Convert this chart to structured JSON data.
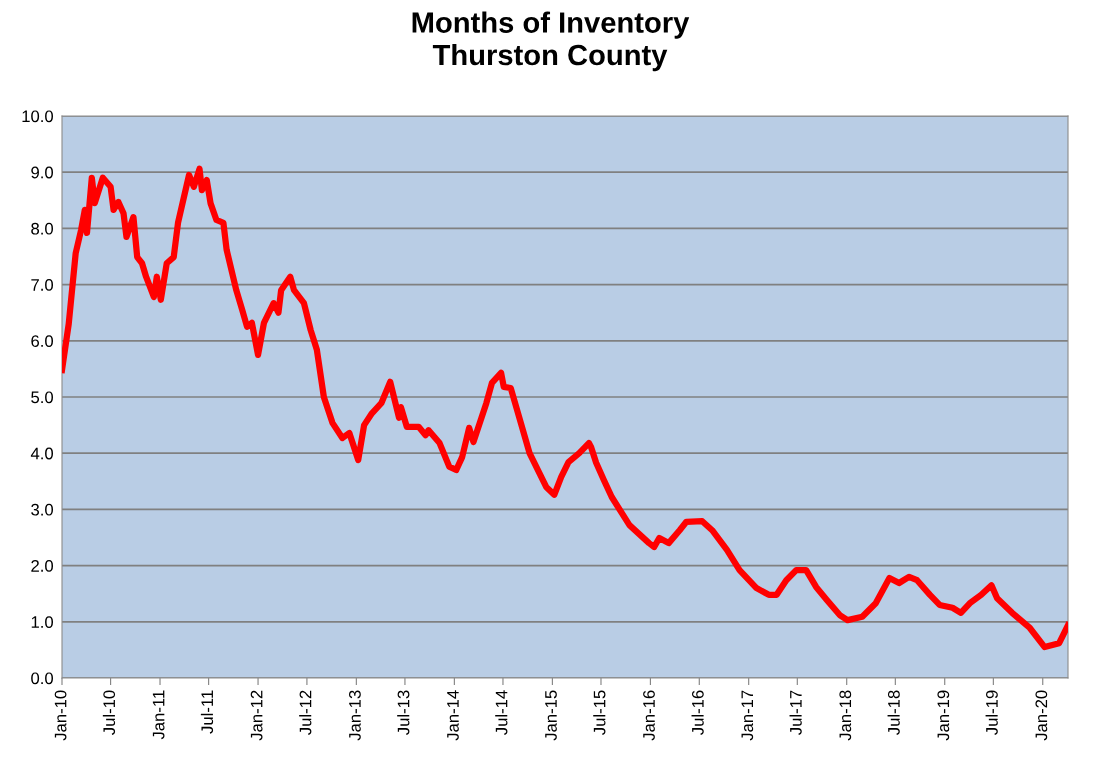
{
  "chart_data": {
    "type": "line",
    "title": "Months of Inventory\nThurston County",
    "x": [
      "2010-01-01",
      "2010-01-26",
      "2010-02-21",
      "2010-03-13",
      "2010-03-27",
      "2010-04-04",
      "2010-04-22",
      "2010-05-03",
      "2010-06-02",
      "2010-07-01",
      "2010-07-12",
      "2010-07-30",
      "2010-08-18",
      "2010-08-29",
      "2010-09-24",
      "2010-10-08",
      "2010-10-26",
      "2010-11-10",
      "2010-12-09",
      "2010-12-20",
      "2011-01-04",
      "2011-01-26",
      "2011-02-21",
      "2011-03-09",
      "2011-04-19",
      "2011-05-07",
      "2011-05-28",
      "2011-06-06",
      "2011-06-24",
      "2011-07-08",
      "2011-07-30",
      "2011-08-25",
      "2011-09-06",
      "2011-10-12",
      "2011-11-03",
      "2011-11-21",
      "2011-12-09",
      "2012-01-01",
      "2012-01-23",
      "2012-02-28",
      "2012-03-17",
      "2012-03-27",
      "2012-04-30",
      "2012-05-14",
      "2012-06-20",
      "2012-07-15",
      "2012-08-07",
      "2012-09-02",
      "2012-10-04",
      "2012-11-10",
      "2012-12-06",
      "2013-01-08",
      "2013-01-30",
      "2013-02-28",
      "2013-04-04",
      "2013-05-07",
      "2013-06-09",
      "2013-06-16",
      "2013-07-08",
      "2013-08-21",
      "2013-09-16",
      "2013-09-27",
      "2013-11-07",
      "2013-12-13",
      "2014-01-08",
      "2014-01-30",
      "2014-02-25",
      "2014-03-13",
      "2014-04-30",
      "2014-05-21",
      "2014-06-24",
      "2014-07-04",
      "2014-07-30",
      "2014-10-08",
      "2014-12-09",
      "2015-01-08",
      "2015-02-03",
      "2015-03-02",
      "2015-04-11",
      "2015-05-17",
      "2015-05-25",
      "2015-06-13",
      "2015-07-12",
      "2015-08-10",
      "2015-10-15",
      "2015-12-27",
      "2016-01-15",
      "2016-02-03",
      "2016-03-09",
      "2016-04-19",
      "2016-05-14",
      "2016-07-12",
      "2016-08-18",
      "2016-10-12",
      "2016-11-28",
      "2017-01-30",
      "2017-03-17",
      "2017-04-15",
      "2017-05-21",
      "2017-06-27",
      "2017-08-03",
      "2017-09-09",
      "2017-10-19",
      "2017-12-06",
      "2018-01-04",
      "2018-02-28",
      "2018-04-19",
      "2018-06-09",
      "2018-07-15",
      "2018-08-21",
      "2018-09-20",
      "2018-11-07",
      "2018-12-13",
      "2019-01-30",
      "2019-03-02",
      "2019-04-04",
      "2019-05-17",
      "2019-06-24",
      "2019-07-15",
      "2019-09-09",
      "2019-11-14",
      "2020-01-08",
      "2020-03-02",
      "2020-04-04"
    ],
    "series": [
      {
        "color": "#ff0000",
        "values": [
          5.48,
          6.3,
          7.56,
          7.97,
          8.33,
          7.92,
          8.9,
          8.45,
          8.9,
          8.74,
          8.33,
          8.47,
          8.27,
          7.85,
          8.2,
          7.49,
          7.38,
          7.14,
          6.78,
          7.14,
          6.73,
          7.38,
          7.49,
          8.1,
          8.95,
          8.74,
          9.06,
          8.68,
          8.86,
          8.45,
          8.15,
          8.1,
          7.62,
          6.9,
          6.55,
          6.25,
          6.32,
          5.75,
          6.32,
          6.67,
          6.5,
          6.9,
          7.14,
          6.9,
          6.67,
          6.19,
          5.84,
          5.0,
          4.54,
          4.27,
          4.36,
          3.88,
          4.5,
          4.71,
          4.89,
          5.27,
          4.63,
          4.82,
          4.47,
          4.47,
          4.32,
          4.41,
          4.18,
          3.76,
          3.7,
          3.93,
          4.45,
          4.2,
          4.89,
          5.25,
          5.43,
          5.18,
          5.16,
          4.0,
          3.4,
          3.26,
          3.58,
          3.84,
          4.0,
          4.18,
          4.11,
          3.83,
          3.52,
          3.22,
          2.72,
          2.4,
          2.33,
          2.49,
          2.4,
          2.63,
          2.78,
          2.79,
          2.63,
          2.28,
          1.92,
          1.6,
          1.48,
          1.48,
          1.74,
          1.92,
          1.92,
          1.62,
          1.39,
          1.12,
          1.03,
          1.09,
          1.33,
          1.78,
          1.69,
          1.8,
          1.74,
          1.48,
          1.3,
          1.25,
          1.16,
          1.33,
          1.48,
          1.65,
          1.42,
          1.16,
          0.89,
          0.55,
          0.62,
          0.94
        ]
      }
    ],
    "xlim": [
      "2010-01-01",
      "2020-04-04"
    ],
    "xticks": [
      {
        "value": "2010-01-01",
        "label": "Jan-10"
      },
      {
        "value": "2010-07-01",
        "label": "Jul-10"
      },
      {
        "value": "2011-01-01",
        "label": "Jan-11"
      },
      {
        "value": "2011-07-01",
        "label": "Jul-11"
      },
      {
        "value": "2012-01-01",
        "label": "Jan-12"
      },
      {
        "value": "2012-07-01",
        "label": "Jul-12"
      },
      {
        "value": "2013-01-01",
        "label": "Jan-13"
      },
      {
        "value": "2013-07-01",
        "label": "Jul-13"
      },
      {
        "value": "2014-01-01",
        "label": "Jan-14"
      },
      {
        "value": "2014-07-01",
        "label": "Jul-14"
      },
      {
        "value": "2015-01-01",
        "label": "Jan-15"
      },
      {
        "value": "2015-07-01",
        "label": "Jul-15"
      },
      {
        "value": "2016-01-01",
        "label": "Jan-16"
      },
      {
        "value": "2016-07-01",
        "label": "Jul-16"
      },
      {
        "value": "2017-01-01",
        "label": "Jan-17"
      },
      {
        "value": "2017-07-01",
        "label": "Jul-17"
      },
      {
        "value": "2018-01-01",
        "label": "Jan-18"
      },
      {
        "value": "2018-07-01",
        "label": "Jul-18"
      },
      {
        "value": "2019-01-01",
        "label": "Jan-19"
      },
      {
        "value": "2019-07-01",
        "label": "Jul-19"
      },
      {
        "value": "2020-01-01",
        "label": "Jan-20"
      }
    ],
    "ylim": [
      0,
      10
    ],
    "yticks": [
      {
        "value": 0,
        "label": "0.0"
      },
      {
        "value": 1,
        "label": "1.0"
      },
      {
        "value": 2,
        "label": "2.0"
      },
      {
        "value": 3,
        "label": "3.0"
      },
      {
        "value": 4,
        "label": "4.0"
      },
      {
        "value": 5,
        "label": "5.0"
      },
      {
        "value": 6,
        "label": "6.0"
      },
      {
        "value": 7,
        "label": "7.0"
      },
      {
        "value": 8,
        "label": "8.0"
      },
      {
        "value": 9,
        "label": "9.0"
      },
      {
        "value": 10,
        "label": "10.0"
      }
    ],
    "grid": "y",
    "marker": "none",
    "line_style": "solid"
  }
}
